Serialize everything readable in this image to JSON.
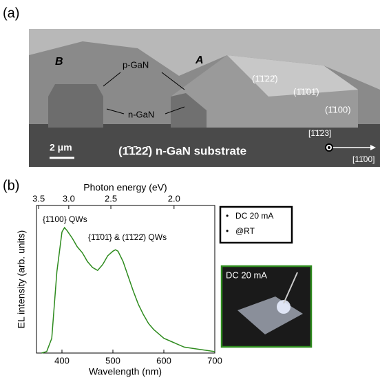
{
  "panel_a": {
    "label": "(a)",
    "marker_b": "B",
    "marker_a": "A",
    "p_gan": "p-GaN",
    "n_gan": "n-GaN",
    "facet_1": "(1̄1̄22̄)",
    "facet_2": "(1̄1̄01̄)",
    "facet_3": "(1̄100)",
    "dir_1": "[1̄1̄23]",
    "dir_2": "[11̄00]",
    "scale_bar": "2 μm",
    "substrate": "(1̄1̄22̄) n-GaN substrate"
  },
  "chart_data": {
    "type": "line",
    "panel_label": "(b)",
    "x_label": "Wavelength (nm)",
    "x2_label": "Photon energy (eV)",
    "y_label": "EL intensity (arb. units)",
    "x": [
      360,
      370,
      380,
      390,
      400,
      405,
      410,
      420,
      430,
      440,
      450,
      460,
      470,
      480,
      490,
      500,
      505,
      510,
      520,
      530,
      540,
      550,
      560,
      570,
      580,
      590,
      600,
      620,
      640,
      660,
      680,
      700
    ],
    "series": [
      {
        "name": "DC 20 mA",
        "color": "#2e8b1e",
        "values": [
          0,
          0.01,
          0.1,
          0.55,
          0.82,
          0.85,
          0.83,
          0.78,
          0.72,
          0.68,
          0.62,
          0.58,
          0.56,
          0.6,
          0.66,
          0.69,
          0.7,
          0.69,
          0.62,
          0.52,
          0.42,
          0.33,
          0.26,
          0.2,
          0.16,
          0.13,
          0.1,
          0.07,
          0.04,
          0.03,
          0.02,
          0.01
        ]
      }
    ],
    "legend_extra": "@RT",
    "xlim": [
      350,
      700
    ],
    "xticks": [
      400,
      500,
      600,
      700
    ],
    "ylim": [
      0,
      1
    ],
    "x2ticks": [
      {
        "value": 3.5,
        "label": "3.5"
      },
      {
        "value": 3,
        "label": "3.0"
      },
      {
        "value": 2.5,
        "label": "2.5"
      },
      {
        "value": 2,
        "label": "2.0"
      }
    ],
    "annotations": [
      "{1̄100} QWs",
      "{1̄1̄01̄} & (1̄1̄22̄) QWs"
    ],
    "inset_label": "DC 20 mA"
  }
}
